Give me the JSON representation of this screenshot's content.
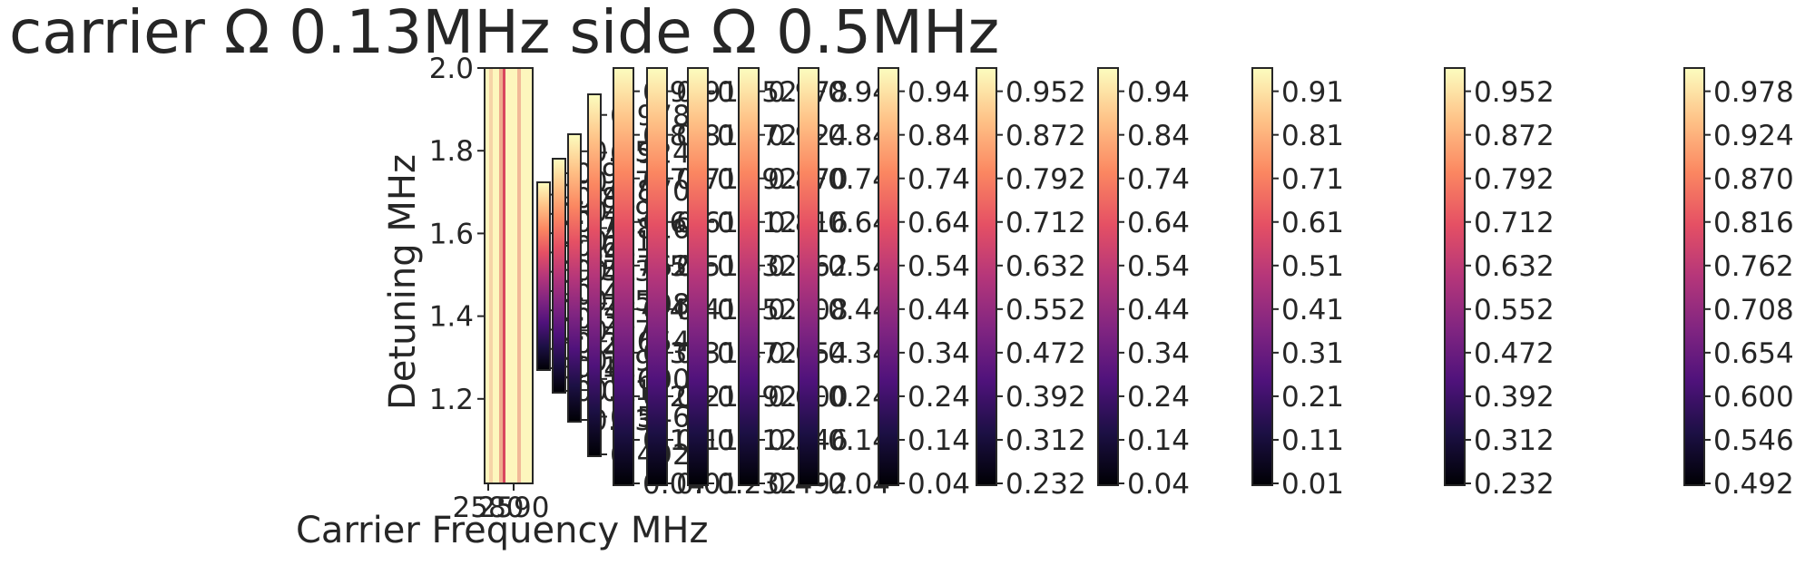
{
  "chart_data": {
    "type": "heatmap",
    "title": "carrier Ω 0.13MHz side Ω 0.5MHz",
    "xlabel": "Carrier Frequency MHz",
    "ylabel": "Detuning MHz",
    "x_tick_labels": [
      "2580",
      "2590"
    ],
    "y_ticks": [
      "1.2",
      "1.4",
      "1.6",
      "1.8",
      "2.0"
    ],
    "ylim": [
      1.0,
      2.0
    ],
    "colormap": "magma",
    "main_panel": {
      "description_values": {
        "background_level": "high",
        "feature_lines": 3
      }
    },
    "colorbars": [
      {
        "ticks": [
          "0.04",
          "0.14",
          "0.24",
          "0.34",
          "0.44",
          "0.54",
          "0.64",
          "0.74",
          "0.84",
          "0.94"
        ]
      },
      {
        "ticks": [
          "0.01",
          "0.11",
          "0.21",
          "0.31",
          "0.41",
          "0.51",
          "0.61",
          "0.71",
          "0.81",
          "0.91"
        ]
      },
      {
        "ticks": [
          "0.232",
          "0.312",
          "0.392",
          "0.472",
          "0.552",
          "0.632",
          "0.712",
          "0.792",
          "0.872",
          "0.952"
        ]
      },
      {
        "ticks": [
          "0.492",
          "0.546",
          "0.600",
          "0.654",
          "0.708",
          "0.762",
          "0.816",
          "0.870",
          "0.924",
          "0.978"
        ]
      }
    ],
    "colors": {
      "magma": [
        "#000004",
        "#1c1044",
        "#4f127b",
        "#812581",
        "#b5367a",
        "#e55064",
        "#fb8761",
        "#fec287",
        "#fcfdbf"
      ]
    }
  }
}
